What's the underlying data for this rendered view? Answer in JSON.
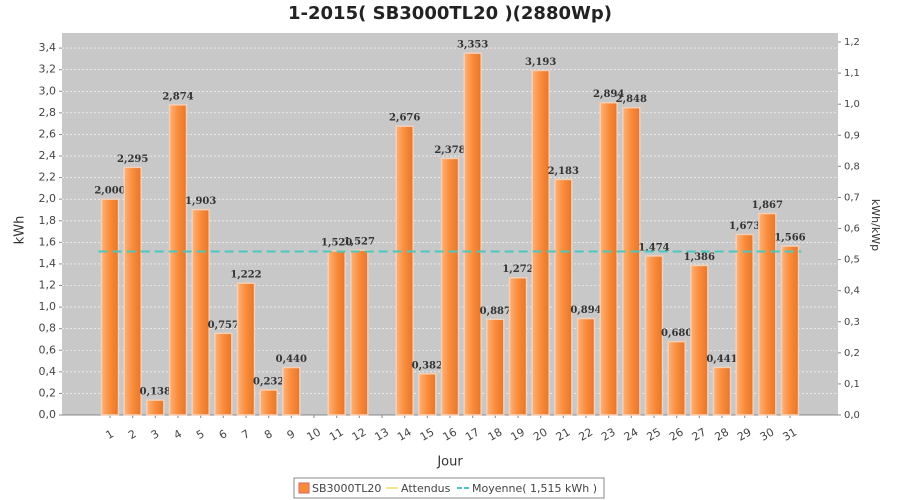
{
  "chart_data": {
    "type": "bar",
    "title": "1-2015( SB3000TL20 )(2880Wp)",
    "x_label": "Jour",
    "y_label": "kWh",
    "y2_label": "kWh/kWp",
    "categories": [
      "1",
      "2",
      "3",
      "4",
      "5",
      "6",
      "7",
      "8",
      "9",
      "10",
      "11",
      "12",
      "13",
      "14",
      "15",
      "16",
      "17",
      "18",
      "19",
      "20",
      "21",
      "22",
      "23",
      "24",
      "25",
      "26",
      "27",
      "28",
      "29",
      "30",
      "31"
    ],
    "series": [
      {
        "name": "SB3000TL20",
        "color": "#f98c3a",
        "values": [
          2.0,
          2.295,
          0.138,
          2.874,
          1.903,
          0.757,
          1.222,
          0.232,
          0.44,
          null,
          1.52,
          1.527,
          null,
          2.676,
          0.382,
          2.378,
          3.353,
          0.887,
          1.272,
          3.193,
          2.183,
          0.894,
          2.894,
          2.848,
          1.474,
          0.68,
          1.386,
          0.441,
          1.673,
          1.867,
          1.566
        ],
        "value_labels": [
          "2,000",
          "2,295",
          "0,138",
          "2,874",
          "1,903",
          "0,757",
          "1,222",
          "0,232",
          "0,440",
          null,
          "1,520",
          "1,527",
          null,
          "2,676",
          "0,382",
          "2,378",
          "3,353",
          "0,887",
          "1,272",
          "3,193",
          "2,183",
          "0,894",
          "2,894",
          "2,848",
          "1,474",
          "0,680",
          "1,386",
          "0,441",
          "1,673",
          "1,867",
          "1,566"
        ]
      },
      {
        "name": "Attendus",
        "color": "#f5e88a"
      }
    ],
    "average": {
      "name": "Moyenne( 1,515 kWh )",
      "value": 1.515,
      "color": "#4cc7c0"
    },
    "ylim": [
      0,
      3.54
    ],
    "yticks": [
      {
        "value": 0,
        "label": "0,0"
      },
      {
        "value": 0.2,
        "label": "0,2"
      },
      {
        "value": 0.4,
        "label": "0,4"
      },
      {
        "value": 0.6,
        "label": "0,6"
      },
      {
        "value": 0.8,
        "label": "0,8"
      },
      {
        "value": 1.0,
        "label": "1,0"
      },
      {
        "value": 1.2,
        "label": "1,2"
      },
      {
        "value": 1.4,
        "label": "1,4"
      },
      {
        "value": 1.6,
        "label": "1,6"
      },
      {
        "value": 1.8,
        "label": "1,8"
      },
      {
        "value": 2.0,
        "label": "2,0"
      },
      {
        "value": 2.2,
        "label": "2,2"
      },
      {
        "value": 2.4,
        "label": "2,4"
      },
      {
        "value": 2.6,
        "label": "2,6"
      },
      {
        "value": 2.8,
        "label": "2,8"
      },
      {
        "value": 3.0,
        "label": "3,0"
      },
      {
        "value": 3.2,
        "label": "3,2"
      },
      {
        "value": 3.4,
        "label": "3,4"
      }
    ],
    "y2lim": [
      0,
      1.229
    ],
    "y2ticks": [
      {
        "value": 0,
        "label": "0,0"
      },
      {
        "value": 0.1,
        "label": "0,1"
      },
      {
        "value": 0.2,
        "label": "0,2"
      },
      {
        "value": 0.3,
        "label": "0,3"
      },
      {
        "value": 0.4,
        "label": "0,4"
      },
      {
        "value": 0.5,
        "label": "0,5"
      },
      {
        "value": 0.6,
        "label": "0,6"
      },
      {
        "value": 0.7,
        "label": "0,7"
      },
      {
        "value": 0.8,
        "label": "0,8"
      },
      {
        "value": 0.9,
        "label": "0,9"
      },
      {
        "value": 1.0,
        "label": "1,0"
      },
      {
        "value": 1.1,
        "label": "1,1"
      },
      {
        "value": 1.2,
        "label": "1,2"
      }
    ],
    "grid": true
  }
}
